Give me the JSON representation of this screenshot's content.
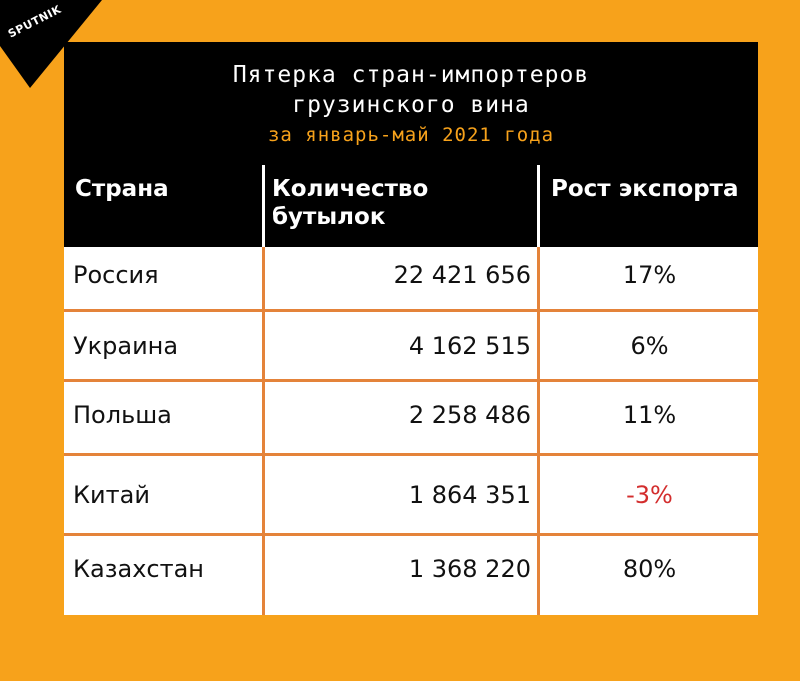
{
  "logo": {
    "text": "SPUTNIK",
    "color": "#000000"
  },
  "title": {
    "line1": "Пятерка стран-импортеров",
    "line2": "грузинского вина",
    "subtitle": "за январь-май 2021 года"
  },
  "colors": {
    "background": "#f7a21b",
    "subtitle": "#f7a21b",
    "negative": "#d32d2d",
    "divider": "#e4833a"
  },
  "table": {
    "headers": {
      "country": "Страна",
      "quantity_line1": "Количество",
      "quantity_line2": "бутылок",
      "growth": "Рост экспорта"
    },
    "rows": [
      {
        "country": "Россия",
        "quantity": "22 421 656",
        "growth": "17%"
      },
      {
        "country": "Украина",
        "quantity": "4 162 515",
        "growth": "6%"
      },
      {
        "country": "Польша",
        "quantity": "2 258 486",
        "growth": "11%"
      },
      {
        "country": "Китай",
        "quantity": "1 864 351",
        "growth": "-3%"
      },
      {
        "country": "Казахстан",
        "quantity": "1 368 220",
        "growth": "80%"
      }
    ]
  }
}
